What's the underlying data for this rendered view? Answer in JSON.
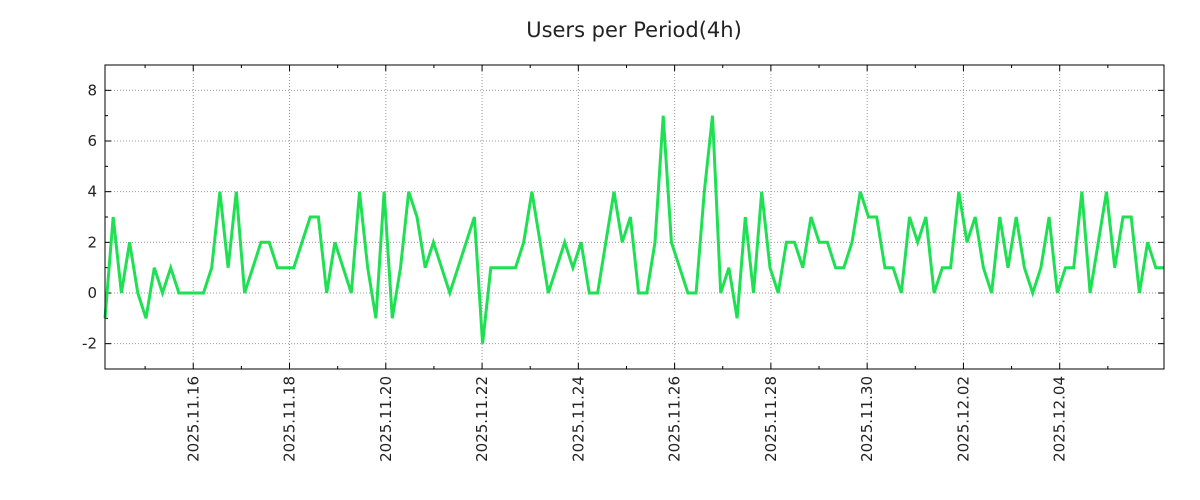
{
  "chart_data": {
    "type": "line",
    "title": "Users per Period(4h)",
    "xlabel": "",
    "ylabel": "",
    "ylim": [
      -3,
      9
    ],
    "y_ticks": [
      -2,
      0,
      2,
      4,
      6,
      8
    ],
    "grid": true,
    "x_start": "2025.11.14 04:00",
    "x_end": "2025.12.06 04:00",
    "x_ticks": [
      "2025.11.16",
      "2025.11.18",
      "2025.11.20",
      "2025.11.22",
      "2025.11.24",
      "2025.11.26",
      "2025.11.28",
      "2025.11.30",
      "2025.12.02",
      "2025.12.04"
    ],
    "series": [
      {
        "name": "Users",
        "color": "#1ee052",
        "values": [
          -1,
          3,
          0,
          2,
          0,
          -1,
          1,
          0,
          1,
          0,
          0,
          0,
          0,
          1,
          4,
          1,
          4,
          0,
          1,
          2,
          2,
          1,
          1,
          1,
          2,
          3,
          3,
          0,
          2,
          1,
          0,
          4,
          1,
          -1,
          4,
          -1,
          1,
          4,
          3,
          1,
          2,
          1,
          0,
          1,
          2,
          3,
          -2,
          1,
          1,
          1,
          1,
          2,
          4,
          2,
          0,
          1,
          2,
          1,
          2,
          0,
          0,
          2,
          4,
          2,
          3,
          0,
          0,
          2,
          7,
          2,
          1,
          0,
          0,
          4,
          7,
          0,
          1,
          -1,
          3,
          0,
          4,
          1,
          0,
          2,
          2,
          1,
          3,
          2,
          2,
          1,
          1,
          2,
          4,
          3,
          3,
          1,
          1,
          0,
          3,
          2,
          3,
          0,
          1,
          1,
          4,
          2,
          3,
          1,
          0,
          3,
          1,
          3,
          1,
          0,
          1,
          3,
          0,
          1,
          1,
          4,
          0,
          2,
          4,
          1,
          3,
          3,
          0,
          2,
          1,
          1
        ]
      }
    ]
  }
}
